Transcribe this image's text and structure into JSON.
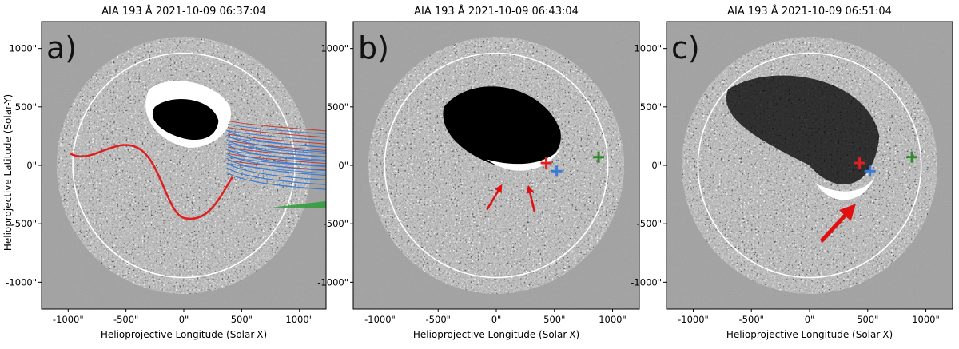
{
  "figure": {
    "ylabel": "Helioprojective Latitude (Solar-Y)",
    "xlabel": "Helioprojective Longitude (Solar-X)",
    "x_ticks": [
      "-1000\"",
      "-500\"",
      "0\"",
      "500\"",
      "1000\""
    ],
    "y_ticks": [
      "1000\"",
      "500\"",
      "0\"",
      "-500\"",
      "-1000\""
    ],
    "panels": [
      {
        "label": "a)",
        "title": "AIA 193 Å 2021-10-09 06:37:04"
      },
      {
        "label": "b)",
        "title": "AIA 193 Å 2021-10-09 06:43:04"
      },
      {
        "label": "c)",
        "title": "AIA 193 Å 2021-10-09 06:51:04"
      }
    ]
  },
  "colors": {
    "field_closed": "#c0392b",
    "field_open": "#3a7bd5",
    "field_green": "#2e9b3a",
    "marker_red": "#e02020",
    "marker_blue": "#3a7bd5",
    "marker_green": "#2e8b2e",
    "arrow": "#e01010",
    "limb": "#ffffff"
  }
}
